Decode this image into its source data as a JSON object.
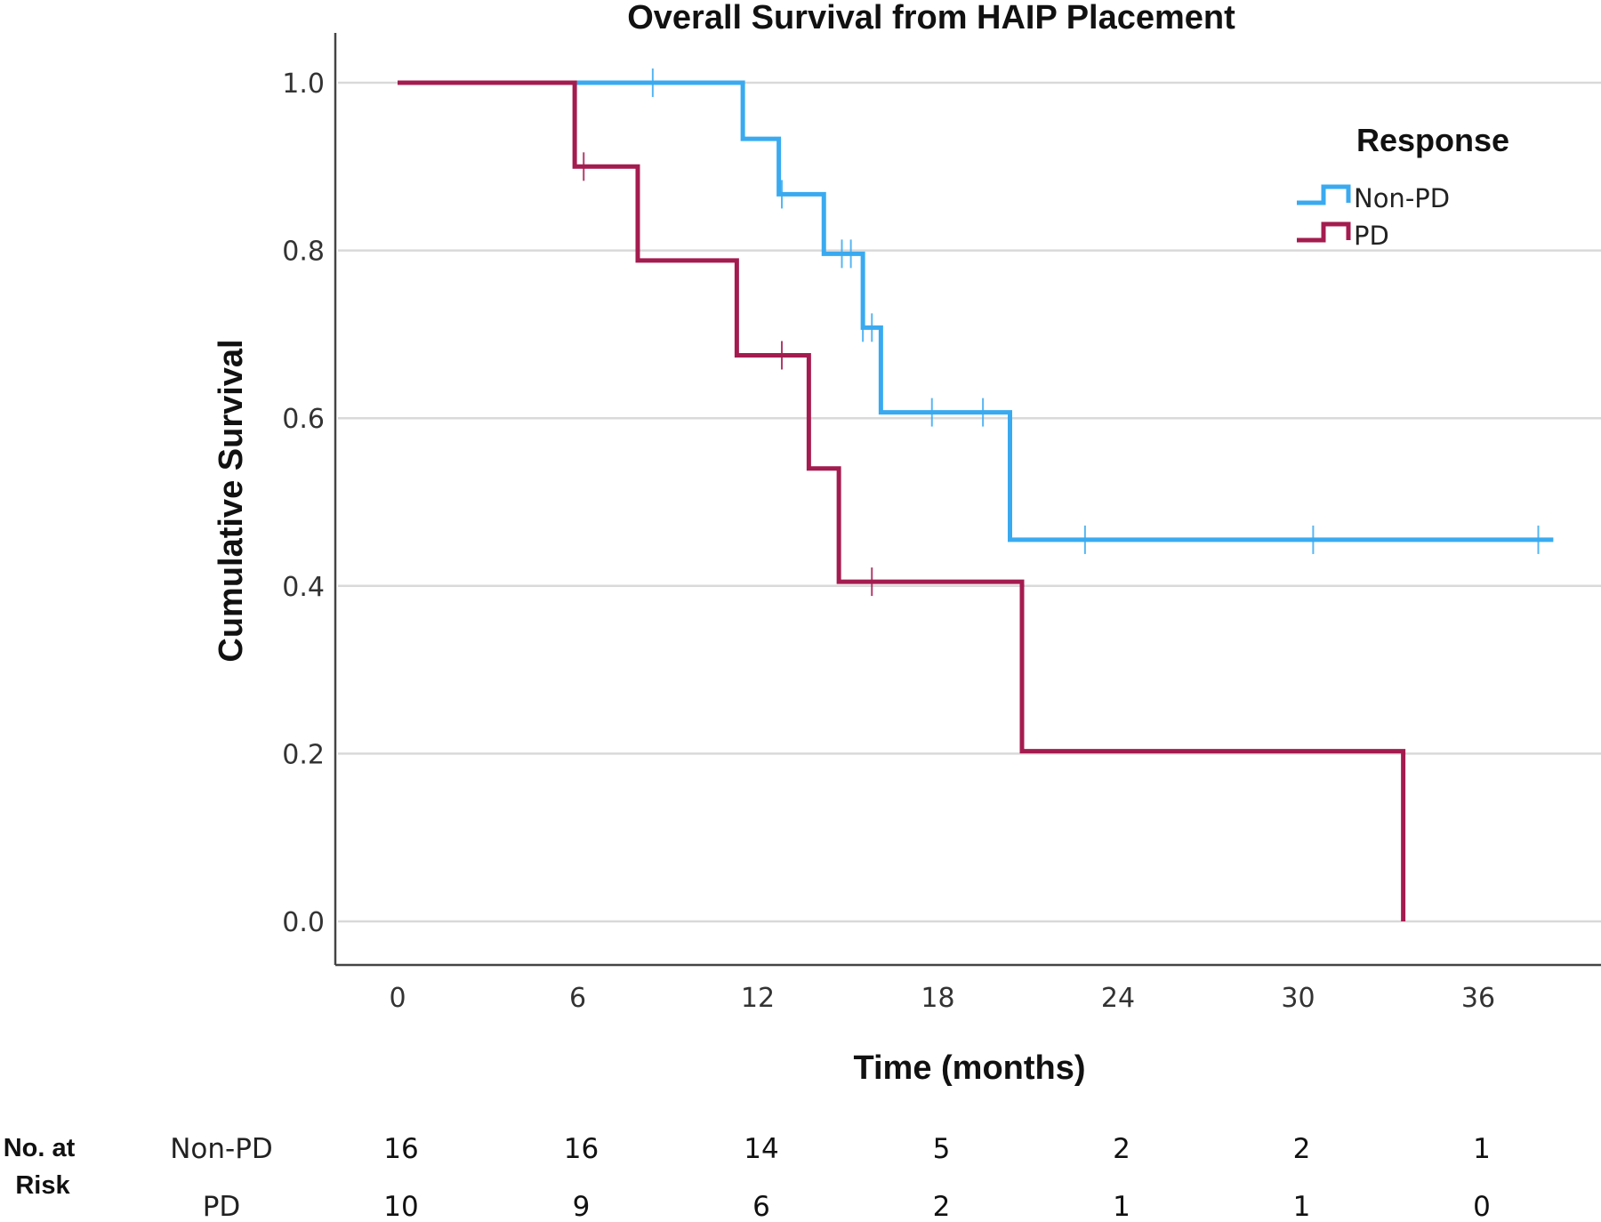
{
  "chart_data": {
    "type": "line",
    "subtype": "kaplan-meier",
    "title": "Overall Survival from HAIP Placement",
    "xlabel": "Time (months)",
    "ylabel": "Cumulative Survival",
    "xlim": [
      -2,
      40.5
    ],
    "ylim": [
      -0.05,
      1.05
    ],
    "xticks": [
      0,
      6,
      12,
      18,
      24,
      30,
      36
    ],
    "yticks": [
      "0.0",
      "0.2",
      "0.4",
      "0.6",
      "0.8",
      "1.0"
    ],
    "grid": "horizontal",
    "legend": {
      "title": "Response",
      "placement": "top-right",
      "entries": [
        "Non-PD",
        "PD"
      ]
    },
    "series": [
      {
        "name": "Non-PD",
        "color": "#3aaaf0",
        "steps": [
          [
            0,
            1.0
          ],
          [
            11.5,
            0.933
          ],
          [
            12.7,
            0.867
          ],
          [
            14.2,
            0.796
          ],
          [
            15.5,
            0.708
          ],
          [
            16.1,
            0.607
          ],
          [
            20.4,
            0.455
          ],
          [
            38.5,
            0.455
          ]
        ],
        "censored": [
          [
            8.5,
            1.0
          ],
          [
            12.8,
            0.867
          ],
          [
            14.8,
            0.796
          ],
          [
            15.1,
            0.796
          ],
          [
            15.5,
            0.708
          ],
          [
            15.8,
            0.708
          ],
          [
            17.8,
            0.607
          ],
          [
            19.5,
            0.607
          ],
          [
            22.9,
            0.455
          ],
          [
            30.5,
            0.455
          ],
          [
            38.0,
            0.455
          ]
        ]
      },
      {
        "name": "PD",
        "color": "#a41c4f",
        "steps": [
          [
            0,
            1.0
          ],
          [
            5.9,
            0.9
          ],
          [
            8.0,
            0.788
          ],
          [
            11.3,
            0.675
          ],
          [
            13.7,
            0.54
          ],
          [
            14.7,
            0.405
          ],
          [
            20.8,
            0.203
          ],
          [
            33.5,
            0.0
          ]
        ],
        "censored": [
          [
            6.2,
            0.9
          ],
          [
            12.8,
            0.675
          ],
          [
            15.8,
            0.405
          ]
        ]
      }
    ],
    "risk_table": {
      "header": "No. at Risk",
      "times": [
        0,
        6,
        12,
        18,
        24,
        30,
        36
      ],
      "rows": [
        {
          "group": "Non-PD",
          "counts": [
            "16",
            "16",
            "14",
            "5",
            "2",
            "2",
            "1"
          ]
        },
        {
          "group": "PD",
          "counts": [
            "10",
            "9",
            "6",
            "2",
            "1",
            "1",
            "0"
          ]
        }
      ]
    }
  }
}
